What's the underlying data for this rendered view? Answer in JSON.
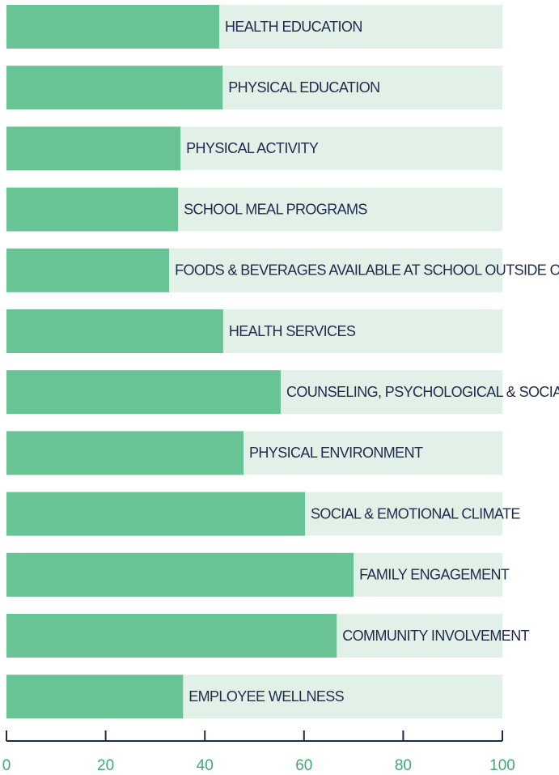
{
  "chart_data": {
    "type": "bar",
    "orientation": "horizontal",
    "categories": [
      "HEALTH EDUCATION",
      "PHYSICAL EDUCATION",
      "PHYSICAL ACTIVITY",
      "SCHOOL MEAL PROGRAMS",
      "FOODS & BEVERAGES AVAILABLE AT SCHOOL OUTSIDE OF SCHOOL MEALS",
      "HEALTH SERVICES",
      "COUNSELING, PSYCHOLOGICAL & SOCIAL SERVICES",
      "PHYSICAL ENVIRONMENT",
      "SOCIAL & EMOTIONAL CLIMATE",
      "FAMILY ENGAGEMENT",
      "COMMUNITY INVOLVEMENT",
      "EMPLOYEE WELLNESS"
    ],
    "values": [
      42.9,
      43.6,
      35.1,
      34.6,
      32.8,
      43.7,
      55.3,
      47.8,
      60.2,
      70.0,
      66.6,
      35.6
    ],
    "color": "#69c495",
    "track_color": "#e1f1e7",
    "xlim": [
      0,
      100
    ],
    "xticks": [
      0,
      20,
      40,
      60,
      80,
      100
    ]
  }
}
